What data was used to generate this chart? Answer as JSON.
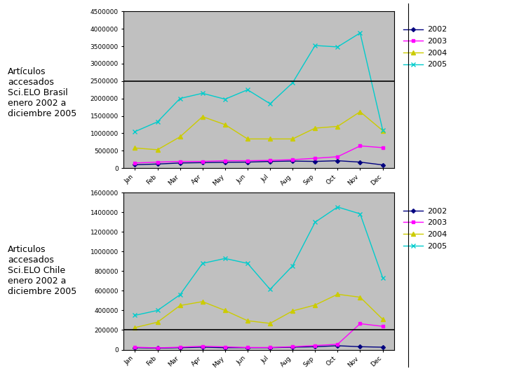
{
  "months": [
    "Jan",
    "Feb",
    "Mar",
    "Apr",
    "May",
    "Jun",
    "Jul",
    "Aug",
    "Sep",
    "Oct",
    "Nov",
    "Dec"
  ],
  "brazil_2002": [
    100000,
    120000,
    150000,
    160000,
    170000,
    175000,
    195000,
    205000,
    195000,
    215000,
    175000,
    95000
  ],
  "brazil_2003": [
    150000,
    175000,
    195000,
    195000,
    215000,
    215000,
    225000,
    245000,
    285000,
    330000,
    640000,
    590000
  ],
  "brazil_2004": [
    580000,
    530000,
    900000,
    1480000,
    1250000,
    840000,
    840000,
    840000,
    1150000,
    1200000,
    1620000,
    1080000
  ],
  "brazil_2005": [
    1050000,
    1330000,
    2000000,
    2150000,
    1980000,
    2250000,
    1850000,
    2450000,
    3520000,
    3480000,
    3880000,
    1100000
  ],
  "chile_2002": [
    20000,
    15000,
    20000,
    25000,
    20000,
    20000,
    20000,
    25000,
    30000,
    40000,
    30000,
    25000
  ],
  "chile_2003": [
    25000,
    18000,
    25000,
    35000,
    28000,
    22000,
    22000,
    30000,
    42000,
    55000,
    265000,
    238000
  ],
  "chile_2004": [
    225000,
    280000,
    450000,
    490000,
    400000,
    295000,
    268000,
    395000,
    455000,
    565000,
    535000,
    310000
  ],
  "chile_2005": [
    350000,
    400000,
    560000,
    880000,
    930000,
    880000,
    615000,
    855000,
    1300000,
    1455000,
    1385000,
    735000
  ],
  "color_2002": "#000080",
  "color_2003": "#ff00ff",
  "color_2004": "#cccc00",
  "color_2005": "#00cccc",
  "label_brazil": "Artículos\naccesados\nSci.ELO Brasil\nenero 2002 a\ndiciembre 2005",
  "label_chile": "Articulos\naccesados\nSci.ELO Chile\nenero 2002 a\ndiciembre 2005",
  "brazil_ylim": [
    0,
    4500000
  ],
  "chile_ylim": [
    0,
    1600000
  ],
  "brazil_yticks": [
    0,
    500000,
    1000000,
    1500000,
    2000000,
    2500000,
    3000000,
    3500000,
    4000000,
    4500000
  ],
  "chile_yticks": [
    0,
    200000,
    400000,
    600000,
    800000,
    1000000,
    1200000,
    1400000,
    1600000
  ],
  "brazil_hline": 2500000,
  "chile_hline": 200000,
  "bg_color": "#c0c0c0",
  "fig_bg": "#ffffff"
}
